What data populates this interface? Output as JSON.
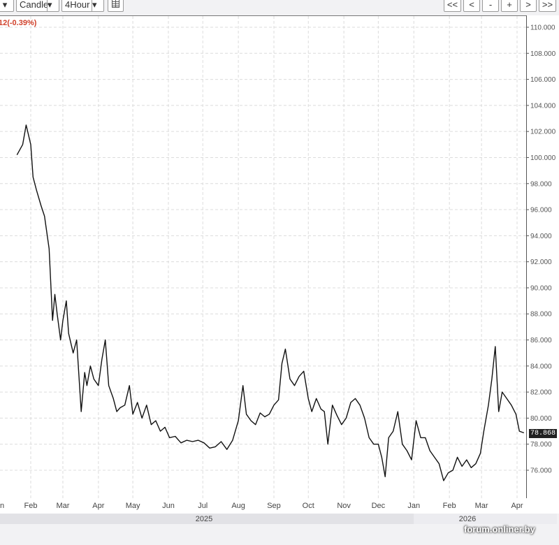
{
  "toolbar": {
    "chart_type": "Candle",
    "interval": "4Hour",
    "nav": [
      "<<",
      "<",
      "-",
      "+",
      ">",
      ">>"
    ]
  },
  "change_label": "12(-0.39%)",
  "last_price": "78.868",
  "watermark": "forum.onliner.by",
  "colors": {
    "price_line": "#111111",
    "change_text": "#d0402a",
    "grid": "#dcdcdc"
  },
  "chart_data": {
    "type": "line",
    "title": "",
    "xlabel": "",
    "ylabel": "",
    "ylim": [
      74.0,
      110.5
    ],
    "y_ticks": [
      "76.000",
      "78.000",
      "80.000",
      "82.000",
      "84.000",
      "86.000",
      "88.000",
      "90.000",
      "92.000",
      "94.000",
      "96.000",
      "98.000",
      "100.000",
      "102.000",
      "104.000",
      "106.000",
      "108.000",
      "110.000"
    ],
    "x_month_labels": [
      "n",
      "Feb",
      "Mar",
      "Apr",
      "May",
      "Jun",
      "Jul",
      "Aug",
      "Sep",
      "Oct",
      "Nov",
      "Dec",
      "Jan",
      "Feb",
      "Mar",
      "Apr"
    ],
    "x_year_labels": [
      "2025",
      "2026"
    ],
    "grid": true,
    "series": [
      {
        "x": [
          "2025-01-20",
          "2025-01-25",
          "2025-01-28",
          "2025-02-01",
          "2025-02-03",
          "2025-02-06",
          "2025-02-10",
          "2025-02-13",
          "2025-02-17",
          "2025-02-20",
          "2025-02-22",
          "2025-02-24",
          "2025-02-27",
          "2025-03-01",
          "2025-03-04",
          "2025-03-06",
          "2025-03-10",
          "2025-03-13",
          "2025-03-17",
          "2025-03-20",
          "2025-03-22",
          "2025-03-25",
          "2025-03-28",
          "2025-04-01",
          "2025-04-04",
          "2025-04-07",
          "2025-04-10",
          "2025-04-14",
          "2025-04-17",
          "2025-04-20",
          "2025-04-24",
          "2025-04-28",
          "2025-05-01",
          "2025-05-05",
          "2025-05-09",
          "2025-05-13",
          "2025-05-17",
          "2025-05-21",
          "2025-05-25",
          "2025-05-29",
          "2025-06-02",
          "2025-06-07",
          "2025-06-12",
          "2025-06-17",
          "2025-06-22",
          "2025-06-27",
          "2025-07-02",
          "2025-07-07",
          "2025-07-12",
          "2025-07-17",
          "2025-07-22",
          "2025-07-27",
          "2025-08-01",
          "2025-08-05",
          "2025-08-08",
          "2025-08-12",
          "2025-08-16",
          "2025-08-20",
          "2025-08-24",
          "2025-08-28",
          "2025-09-01",
          "2025-09-05",
          "2025-09-08",
          "2025-09-11",
          "2025-09-15",
          "2025-09-19",
          "2025-09-23",
          "2025-09-27",
          "2025-10-01",
          "2025-10-04",
          "2025-10-08",
          "2025-10-12",
          "2025-10-15",
          "2025-10-18",
          "2025-10-22",
          "2025-10-26",
          "2025-10-30",
          "2025-11-03",
          "2025-11-07",
          "2025-11-11",
          "2025-11-15",
          "2025-11-19",
          "2025-11-23",
          "2025-11-27",
          "2025-12-01",
          "2025-12-04",
          "2025-12-07",
          "2025-12-10",
          "2025-12-14",
          "2025-12-18",
          "2025-12-22",
          "2025-12-26",
          "2025-12-30",
          "2026-01-03",
          "2026-01-07",
          "2026-01-11",
          "2026-01-15",
          "2026-01-19",
          "2026-01-23",
          "2026-01-27",
          "2026-01-31",
          "2026-02-04",
          "2026-02-08",
          "2026-02-12",
          "2026-02-16",
          "2026-02-20",
          "2026-02-24",
          "2026-02-28",
          "2026-03-03",
          "2026-03-07",
          "2026-03-10",
          "2026-03-13",
          "2026-03-16",
          "2026-03-19",
          "2026-03-23",
          "2026-03-27",
          "2026-03-31",
          "2026-04-03",
          "2026-04-07"
        ],
        "values": [
          100.2,
          101.0,
          102.5,
          101.0,
          98.5,
          97.5,
          96.3,
          95.5,
          93.0,
          87.5,
          89.5,
          88.0,
          86.0,
          87.5,
          89.0,
          86.5,
          85.0,
          86.0,
          80.5,
          83.5,
          82.5,
          84.0,
          83.0,
          82.5,
          84.5,
          86.0,
          82.5,
          81.5,
          80.5,
          80.8,
          81.0,
          82.5,
          80.3,
          81.2,
          80.0,
          81.0,
          79.5,
          79.8,
          79.0,
          79.3,
          78.5,
          78.6,
          78.1,
          78.3,
          78.2,
          78.3,
          78.1,
          77.7,
          77.8,
          78.2,
          77.6,
          78.3,
          79.8,
          82.5,
          80.3,
          79.8,
          79.5,
          80.4,
          80.1,
          80.3,
          81.0,
          81.4,
          84.2,
          85.3,
          83.0,
          82.5,
          83.2,
          83.6,
          81.5,
          80.5,
          81.5,
          80.7,
          80.5,
          78.0,
          81.0,
          80.2,
          79.5,
          80.0,
          81.2,
          81.5,
          81.0,
          80.0,
          78.5,
          78.0,
          78.0,
          77.0,
          75.5,
          78.5,
          79.0,
          80.5,
          78.0,
          77.5,
          76.8,
          79.8,
          78.5,
          78.5,
          77.5,
          77.0,
          76.5,
          75.2,
          75.8,
          76.0,
          77.0,
          76.3,
          76.8,
          76.2,
          76.5,
          77.3,
          79.0,
          81.0,
          83.0,
          85.5,
          80.5,
          82.0,
          81.5,
          81.0,
          80.3,
          79.0,
          78.868
        ]
      }
    ]
  }
}
